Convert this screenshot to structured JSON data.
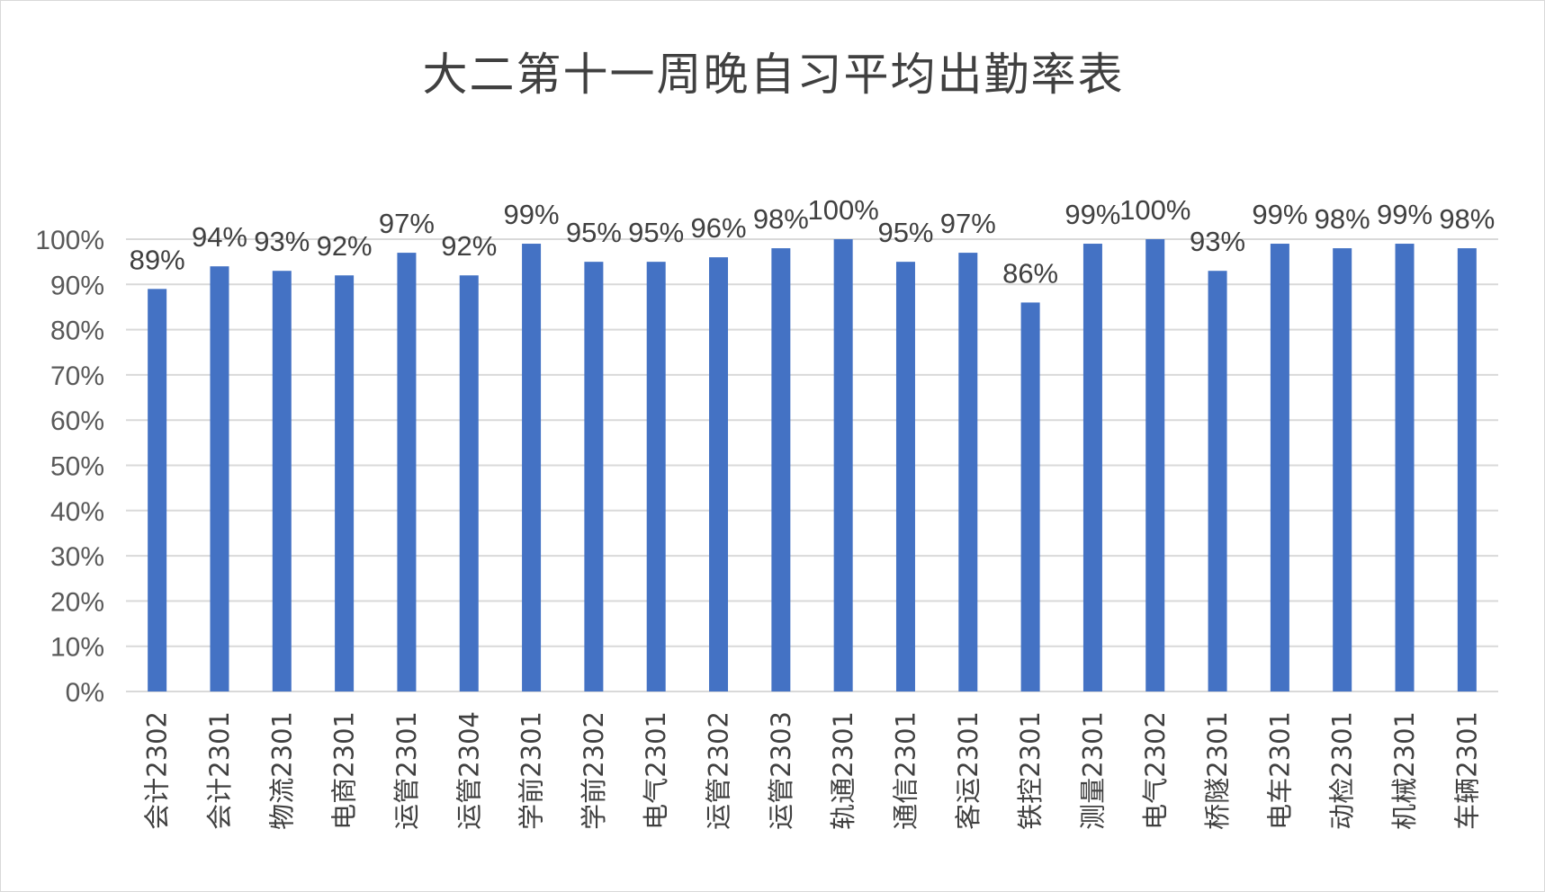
{
  "chart_data": {
    "type": "bar",
    "title": "大二第十一周晚自习平均出勤率表",
    "categories": [
      "会计2302",
      "会计2301",
      "物流2301",
      "电商2301",
      "运管2301",
      "运管2304",
      "学前2301",
      "学前2302",
      "电气2301",
      "运管2302",
      "运管2303",
      "轨通2301",
      "通信2301",
      "客运2301",
      "铁控2301",
      "测量2301",
      "电气2302",
      "桥隧2301",
      "电车2301",
      "动检2301",
      "机械2301",
      "车辆2301"
    ],
    "values": [
      89,
      94,
      93,
      92,
      97,
      92,
      99,
      95,
      95,
      96,
      98,
      100,
      95,
      97,
      86,
      99,
      100,
      93,
      99,
      98,
      99,
      98
    ],
    "data_labels": [
      "89%",
      "94%",
      "93%",
      "92%",
      "97%",
      "92%",
      "99%",
      "95%",
      "95%",
      "96%",
      "98%",
      "100%",
      "95%",
      "97%",
      "86%",
      "99%",
      "100%",
      "93%",
      "99%",
      "98%",
      "99%",
      "98%"
    ],
    "ylim": [
      0,
      100
    ],
    "yticks": [
      "0%",
      "10%",
      "20%",
      "30%",
      "40%",
      "50%",
      "60%",
      "70%",
      "80%",
      "90%",
      "100%"
    ],
    "grid": true,
    "bar_color": "#4472C4",
    "grid_color": "#d9d9d9"
  }
}
